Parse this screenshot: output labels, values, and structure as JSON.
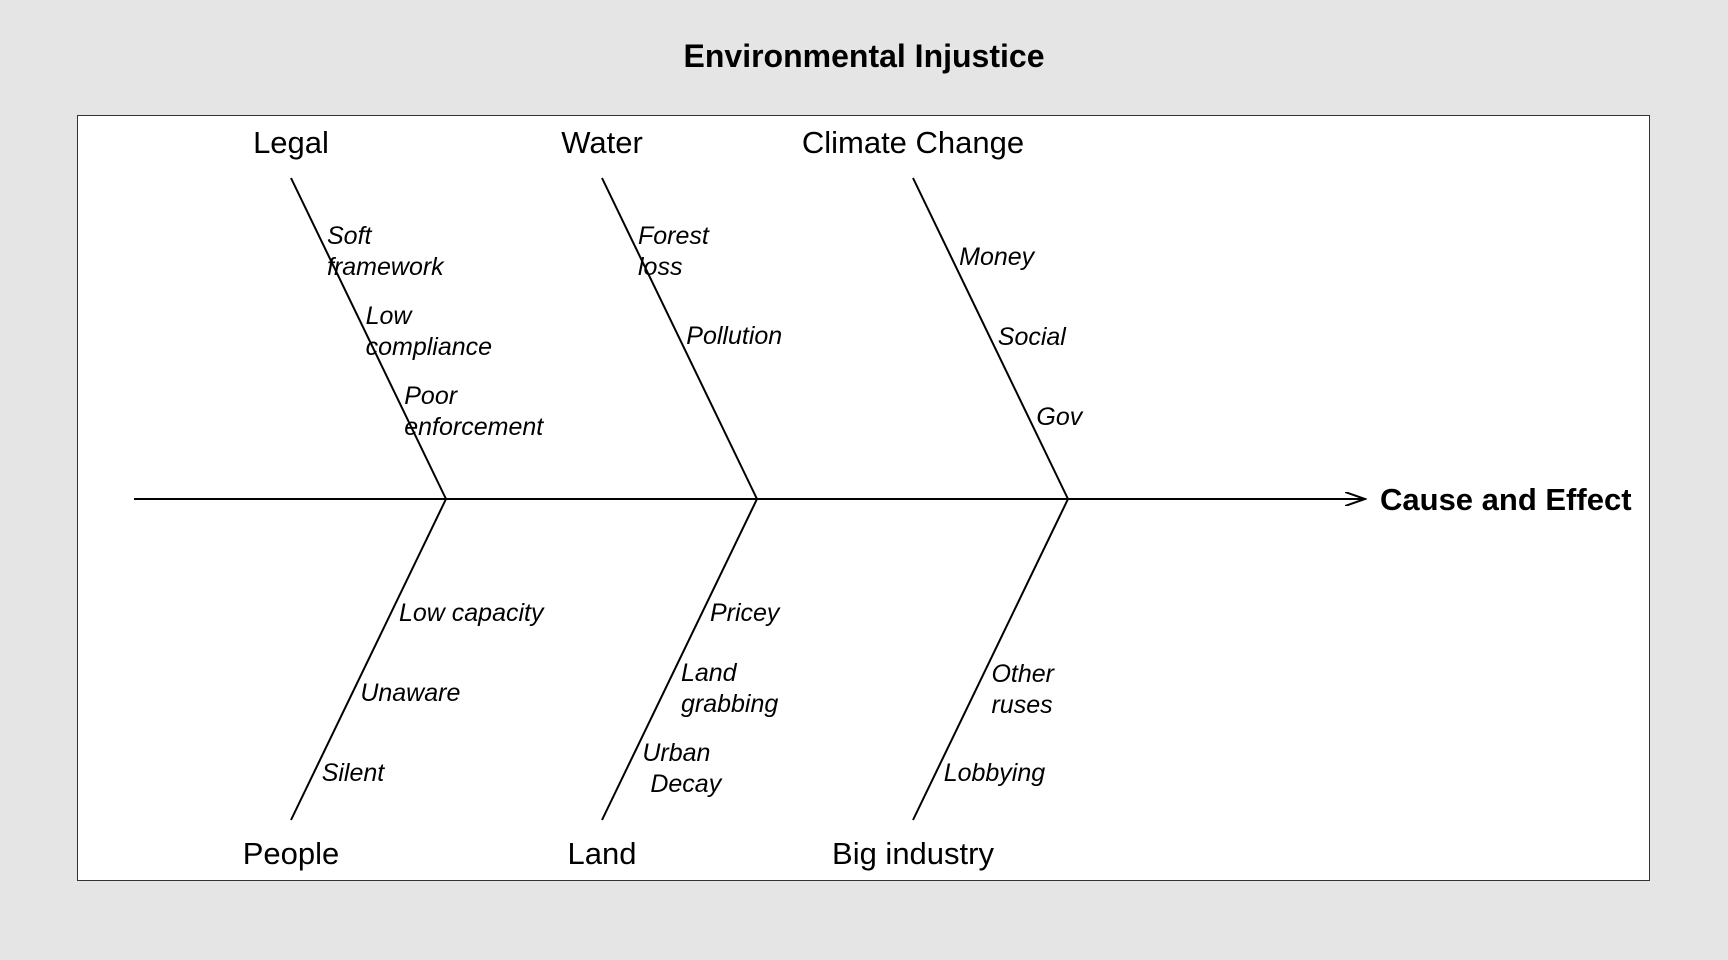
{
  "title": "Environmental Injustice",
  "effect": "Cause and Effect",
  "categories": [
    {
      "name": "Legal",
      "position": "top",
      "causes": [
        [
          "Soft",
          "framework"
        ],
        [
          "Low",
          "compliance"
        ],
        [
          "Poor",
          "enforcement"
        ]
      ]
    },
    {
      "name": "Water",
      "position": "top",
      "causes": [
        [
          "Forest",
          "loss"
        ],
        [
          "Pollution"
        ]
      ]
    },
    {
      "name": "Climate Change",
      "position": "top",
      "causes": [
        [
          "Money"
        ],
        [
          "Social"
        ],
        [
          "Gov"
        ]
      ]
    },
    {
      "name": "People",
      "position": "bottom",
      "causes": [
        [
          "Low capacity"
        ],
        [
          "Unaware"
        ],
        [
          "Silent"
        ]
      ]
    },
    {
      "name": "Land",
      "position": "bottom",
      "causes": [
        [
          "Pricey"
        ],
        [
          "Land",
          "grabbing"
        ],
        [
          "Urban",
          "Decay"
        ]
      ]
    },
    {
      "name": "Big industry",
      "position": "bottom",
      "causes": [
        [
          "Other",
          "ruses"
        ],
        [
          "Lobbying"
        ]
      ]
    }
  ]
}
